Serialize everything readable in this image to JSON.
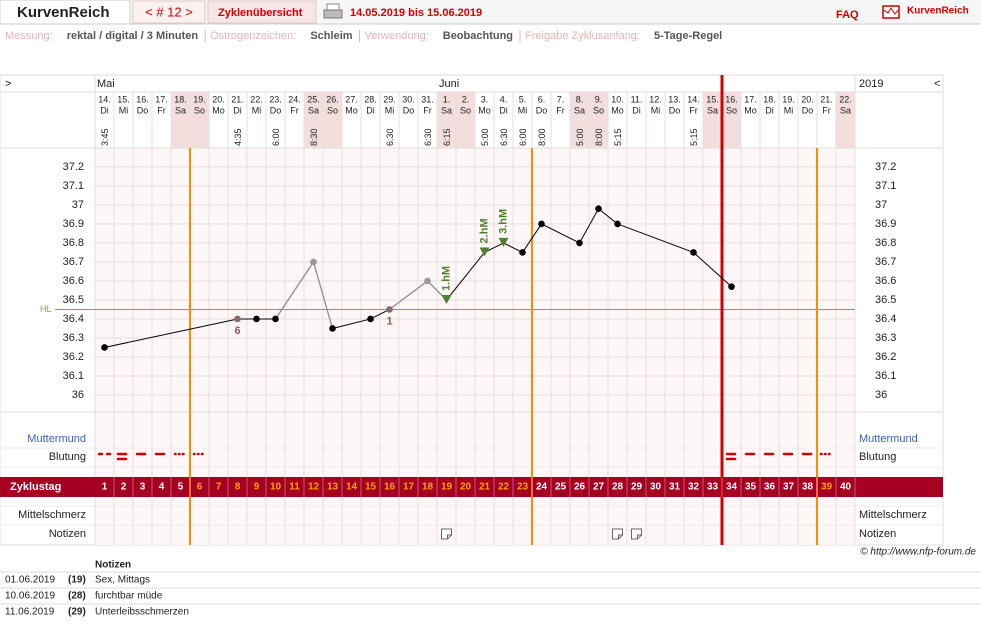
{
  "header": {
    "brand": "KurvenReich",
    "cycle_nav": "< # 12 >",
    "overview": "Zyklenübersicht",
    "date_range": "14.05.2019 bis 15.06.2019",
    "faq": "FAQ",
    "logo": "KurvenReich"
  },
  "settings": [
    {
      "label": "Messung:",
      "value": "rektal / digital / 3 Minuten"
    },
    {
      "label": "Östrogenzeichen:",
      "value": "Schleim"
    },
    {
      "label": "Verwendung:",
      "value": "Beobachtung"
    },
    {
      "label": "Freigabe Zyklusanfang:",
      "value": "5-Tage-Regel"
    }
  ],
  "chart_data": {
    "type": "line",
    "nav_left": ">",
    "nav_right": "<",
    "year": "2019",
    "months": [
      {
        "x": 1,
        "text": "Mai"
      },
      {
        "x": 19,
        "text": "Juni"
      }
    ],
    "days": [
      {
        "date": "14.",
        "weekday": "Di",
        "time": "3:45"
      },
      {
        "date": "15.",
        "weekday": "Mi"
      },
      {
        "date": "16.",
        "weekday": "Do"
      },
      {
        "date": "17.",
        "weekday": "Fr"
      },
      {
        "date": "18.",
        "weekday": "Sa"
      },
      {
        "date": "19.",
        "weekday": "So"
      },
      {
        "date": "20.",
        "weekday": "Mo"
      },
      {
        "date": "21.",
        "weekday": "Di",
        "time": "4:35"
      },
      {
        "date": "22.",
        "weekday": "Mi"
      },
      {
        "date": "23.",
        "weekday": "Do",
        "time": "6:00"
      },
      {
        "date": "24.",
        "weekday": "Fr"
      },
      {
        "date": "25.",
        "weekday": "Sa",
        "time": "8:30"
      },
      {
        "date": "26.",
        "weekday": "So"
      },
      {
        "date": "27.",
        "weekday": "Mo"
      },
      {
        "date": "28.",
        "weekday": "Di"
      },
      {
        "date": "29.",
        "weekday": "Mi",
        "time": "6:30"
      },
      {
        "date": "30.",
        "weekday": "Do"
      },
      {
        "date": "31.",
        "weekday": "Fr",
        "time": "6:30"
      },
      {
        "date": "1.",
        "weekday": "Sa",
        "time": "6:15"
      },
      {
        "date": "2.",
        "weekday": "So"
      },
      {
        "date": "3.",
        "weekday": "Mo",
        "time": "5:00"
      },
      {
        "date": "4.",
        "weekday": "Di",
        "time": "6:30"
      },
      {
        "date": "5.",
        "weekday": "Mi",
        "time": "6:00"
      },
      {
        "date": "6.",
        "weekday": "Do",
        "time": "8:00"
      },
      {
        "date": "7.",
        "weekday": "Fr"
      },
      {
        "date": "8.",
        "weekday": "Sa",
        "time": "5:00"
      },
      {
        "date": "9.",
        "weekday": "So",
        "time": "8:00"
      },
      {
        "date": "10.",
        "weekday": "Mo",
        "time": "5:15"
      },
      {
        "date": "11.",
        "weekday": "Di"
      },
      {
        "date": "12.",
        "weekday": "Mi"
      },
      {
        "date": "13.",
        "weekday": "Do"
      },
      {
        "date": "14.",
        "weekday": "Fr",
        "time": "5:15"
      },
      {
        "date": "15.",
        "weekday": "Sa"
      },
      {
        "date": "16.",
        "weekday": "So"
      },
      {
        "date": "17.",
        "weekday": "Mo"
      },
      {
        "date": "18.",
        "weekday": "Di"
      },
      {
        "date": "19.",
        "weekday": "Mi"
      },
      {
        "date": "20.",
        "weekday": "Do"
      },
      {
        "date": "21.",
        "weekday": "Fr"
      },
      {
        "date": "22.",
        "weekday": "Sa"
      }
    ],
    "cycle_days": [
      1,
      2,
      3,
      4,
      5,
      6,
      7,
      8,
      9,
      10,
      11,
      12,
      13,
      14,
      15,
      16,
      17,
      18,
      19,
      20,
      21,
      22,
      23,
      24,
      25,
      26,
      27,
      28,
      29,
      30,
      31,
      32,
      33,
      34,
      35,
      36,
      37,
      38,
      39,
      40
    ],
    "highlight_days": [
      6,
      7,
      8,
      9,
      10,
      11,
      12,
      13,
      14,
      15,
      16,
      17,
      18,
      19,
      20,
      21,
      22,
      23,
      39
    ],
    "highlight_color": "#ffa500",
    "shaded_days": [
      5,
      6,
      12,
      13,
      19,
      20,
      26,
      27,
      33,
      34,
      40
    ],
    "shade_color": "#f3dede",
    "xlim": [
      0.5,
      40.5
    ],
    "ylim": [
      35.9,
      37.3
    ],
    "yticks": [
      36,
      36.1,
      36.2,
      36.3,
      36.4,
      36.5,
      36.6,
      36.7,
      36.8,
      36.9,
      37,
      37.1,
      37.2
    ],
    "grid": true,
    "series": [
      {
        "color": "#000000",
        "x": [
          1,
          8,
          9,
          10,
          12,
          13,
          15,
          16,
          18,
          19,
          21,
          22,
          23,
          24,
          26,
          27,
          28,
          32,
          34
        ],
        "values": [
          36.25,
          36.4,
          36.4,
          36.4,
          36.7,
          36.35,
          36.4,
          36.45,
          36.6,
          36.5,
          36.75,
          36.8,
          36.75,
          36.9,
          36.8,
          36.98,
          36.9,
          36.75,
          36.57
        ],
        "point_colors": [
          "#000000",
          "#8b6a6a",
          "#000000",
          "#000000",
          "#999999",
          "#000000",
          "#000000",
          "#8b6a6a",
          "#999999",
          "#4f7f2f",
          "#4f7f2f",
          "#4f7f2f",
          "#000000",
          "#000000",
          "#000000",
          "#000000",
          "#000000",
          "#000000",
          "#000000"
        ],
        "segment_colors": [
          "#000000",
          "#000000",
          "#000000",
          "#999999",
          "#999999",
          "#000000",
          "#000000",
          "#999999",
          "#999999",
          "#000000",
          "#000000",
          "#000000",
          "#000000",
          "#000000",
          "#000000",
          "#000000",
          "#000000",
          "#000000"
        ]
      }
    ],
    "hl": {
      "value": 36.45,
      "label": "HL",
      "color": "#7aa84a"
    },
    "peaks": [
      {
        "x": 19,
        "label": "1.hM"
      },
      {
        "x": 21,
        "label": "2.hM"
      },
      {
        "x": 22,
        "label": "3.hM"
      }
    ],
    "peak_color": "#4f7f2f",
    "point_labels": [
      {
        "x": 8,
        "text": "6"
      },
      {
        "x": 16,
        "text": "1"
      }
    ],
    "label_color": "#8b5a5a",
    "vlines": [
      {
        "x": 5.5,
        "color": "#ff8c00"
      },
      {
        "x": 23.5,
        "color": "#ff8c00"
      },
      {
        "x": 38.5,
        "color": "#ff8c00"
      },
      {
        "x": 33.5,
        "color": "#d40000"
      }
    ],
    "rows": {
      "muttermund": "Muttermund",
      "blutung": "Blutung",
      "zyklustag": "Zyklustag",
      "mittelschmerz": "Mittelschmerz",
      "notizen": "Notizen"
    },
    "note_days": [
      19,
      28,
      29
    ]
  },
  "copyright": "© http://www.nfp-forum.de",
  "notes": {
    "title": "Notizen",
    "rows": [
      [
        "01.06.2019",
        "(19)",
        "Sex, Mittags"
      ],
      [
        "10.06.2019",
        "(28)",
        "furchtbar müde"
      ],
      [
        "11.06.2019",
        "(29)",
        "Unterleibsschmerzen"
      ]
    ]
  }
}
